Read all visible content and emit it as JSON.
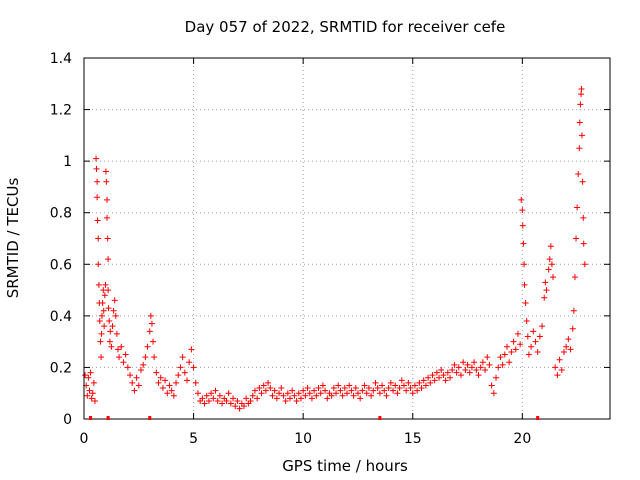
{
  "chart_data": {
    "type": "scatter",
    "title": "Day 057 of 2022, SRMTID for receiver cefe",
    "xlabel": "GPS time / hours",
    "ylabel": "SRMTID / TECUs",
    "xlim": [
      0,
      24
    ],
    "ylim": [
      0,
      1.4
    ],
    "xticks": [
      0,
      5,
      10,
      15,
      20
    ],
    "xtick_labels": [
      "0",
      "5",
      "10",
      "15",
      "20"
    ],
    "yticks": [
      0,
      0.2,
      0.4,
      0.6,
      0.8,
      1,
      1.2,
      1.4
    ],
    "ytick_labels": [
      "0",
      "0.2",
      "0.4",
      "0.6",
      "0.8",
      "1",
      "1.2",
      "1.4"
    ],
    "grid": true,
    "marker": "+",
    "series_color": "#ff0000",
    "series": [
      {
        "name": "SRMTID",
        "points": [
          [
            0.05,
            0.17
          ],
          [
            0.1,
            0.13
          ],
          [
            0.15,
            0.09
          ],
          [
            0.2,
            0.16
          ],
          [
            0.25,
            0.11
          ],
          [
            0.3,
            0.18
          ],
          [
            0.35,
            0.08
          ],
          [
            0.4,
            0.1
          ],
          [
            0.45,
            0.14
          ],
          [
            0.5,
            0.07
          ],
          [
            0.55,
            1.01
          ],
          [
            0.57,
            0.97
          ],
          [
            0.6,
            0.92
          ],
          [
            0.6,
            0.86
          ],
          [
            0.62,
            0.77
          ],
          [
            0.65,
            0.7
          ],
          [
            0.65,
            0.6
          ],
          [
            0.68,
            0.52
          ],
          [
            0.7,
            0.45
          ],
          [
            0.72,
            0.38
          ],
          [
            0.75,
            0.3
          ],
          [
            0.78,
            0.24
          ],
          [
            0.8,
            0.33
          ],
          [
            0.82,
            0.4
          ],
          [
            0.85,
            0.45
          ],
          [
            0.88,
            0.5
          ],
          [
            0.9,
            0.42
          ],
          [
            0.92,
            0.36
          ],
          [
            0.95,
            0.48
          ],
          [
            0.98,
            0.52
          ],
          [
            1.0,
            0.96
          ],
          [
            1.02,
            0.92
          ],
          [
            1.05,
            0.85
          ],
          [
            1.05,
            0.78
          ],
          [
            1.08,
            0.7
          ],
          [
            1.1,
            0.62
          ],
          [
            1.1,
            0.5
          ],
          [
            1.12,
            0.43
          ],
          [
            1.15,
            0.38
          ],
          [
            1.18,
            0.3
          ],
          [
            1.2,
            0.34
          ],
          [
            1.25,
            0.28
          ],
          [
            1.3,
            0.36
          ],
          [
            1.35,
            0.42
          ],
          [
            1.4,
            0.46
          ],
          [
            1.45,
            0.4
          ],
          [
            1.5,
            0.33
          ],
          [
            1.55,
            0.27
          ],
          [
            1.6,
            0.24
          ],
          [
            1.7,
            0.28
          ],
          [
            1.8,
            0.22
          ],
          [
            1.9,
            0.25
          ],
          [
            2.0,
            0.2
          ],
          [
            2.1,
            0.17
          ],
          [
            2.2,
            0.14
          ],
          [
            2.3,
            0.11
          ],
          [
            2.4,
            0.16
          ],
          [
            2.5,
            0.13
          ],
          [
            2.6,
            0.19
          ],
          [
            2.7,
            0.21
          ],
          [
            2.8,
            0.24
          ],
          [
            2.9,
            0.28
          ],
          [
            3.0,
            0.34
          ],
          [
            3.05,
            0.4
          ],
          [
            3.1,
            0.37
          ],
          [
            3.15,
            0.3
          ],
          [
            3.2,
            0.24
          ],
          [
            3.3,
            0.18
          ],
          [
            3.4,
            0.14
          ],
          [
            3.5,
            0.16
          ],
          [
            3.6,
            0.12
          ],
          [
            3.7,
            0.15
          ],
          [
            3.8,
            0.1
          ],
          [
            3.9,
            0.13
          ],
          [
            4.0,
            0.11
          ],
          [
            4.1,
            0.09
          ],
          [
            4.2,
            0.14
          ],
          [
            4.3,
            0.17
          ],
          [
            4.4,
            0.2
          ],
          [
            4.5,
            0.24
          ],
          [
            4.6,
            0.18
          ],
          [
            4.7,
            0.15
          ],
          [
            4.8,
            0.22
          ],
          [
            4.9,
            0.27
          ],
          [
            5.0,
            0.2
          ],
          [
            5.1,
            0.14
          ],
          [
            5.2,
            0.1
          ],
          [
            5.3,
            0.07
          ],
          [
            5.4,
            0.08
          ],
          [
            5.5,
            0.06
          ],
          [
            5.6,
            0.09
          ],
          [
            5.7,
            0.07
          ],
          [
            5.8,
            0.1
          ],
          [
            5.9,
            0.08
          ],
          [
            6.0,
            0.11
          ],
          [
            6.1,
            0.07
          ],
          [
            6.2,
            0.09
          ],
          [
            6.3,
            0.06
          ],
          [
            6.4,
            0.08
          ],
          [
            6.5,
            0.07
          ],
          [
            6.6,
            0.1
          ],
          [
            6.7,
            0.06
          ],
          [
            6.8,
            0.08
          ],
          [
            6.9,
            0.05
          ],
          [
            7.0,
            0.07
          ],
          [
            7.1,
            0.04
          ],
          [
            7.2,
            0.06
          ],
          [
            7.3,
            0.05
          ],
          [
            7.4,
            0.08
          ],
          [
            7.5,
            0.06
          ],
          [
            7.6,
            0.07
          ],
          [
            7.7,
            0.09
          ],
          [
            7.8,
            0.11
          ],
          [
            7.9,
            0.08
          ],
          [
            8.0,
            0.12
          ],
          [
            8.1,
            0.1
          ],
          [
            8.2,
            0.13
          ],
          [
            8.3,
            0.11
          ],
          [
            8.4,
            0.14
          ],
          [
            8.5,
            0.12
          ],
          [
            8.6,
            0.09
          ],
          [
            8.7,
            0.11
          ],
          [
            8.8,
            0.08
          ],
          [
            8.9,
            0.1
          ],
          [
            9.0,
            0.12
          ],
          [
            9.1,
            0.09
          ],
          [
            9.2,
            0.07
          ],
          [
            9.3,
            0.1
          ],
          [
            9.4,
            0.08
          ],
          [
            9.5,
            0.11
          ],
          [
            9.6,
            0.09
          ],
          [
            9.7,
            0.07
          ],
          [
            9.8,
            0.1
          ],
          [
            9.9,
            0.08
          ],
          [
            10.0,
            0.11
          ],
          [
            10.1,
            0.09
          ],
          [
            10.2,
            0.12
          ],
          [
            10.3,
            0.1
          ],
          [
            10.4,
            0.08
          ],
          [
            10.5,
            0.11
          ],
          [
            10.6,
            0.09
          ],
          [
            10.7,
            0.12
          ],
          [
            10.8,
            0.1
          ],
          [
            10.9,
            0.13
          ],
          [
            11.0,
            0.11
          ],
          [
            11.1,
            0.08
          ],
          [
            11.2,
            0.1
          ],
          [
            11.3,
            0.09
          ],
          [
            11.4,
            0.12
          ],
          [
            11.5,
            0.1
          ],
          [
            11.6,
            0.13
          ],
          [
            11.7,
            0.11
          ],
          [
            11.8,
            0.09
          ],
          [
            11.9,
            0.12
          ],
          [
            12.0,
            0.1
          ],
          [
            12.1,
            0.13
          ],
          [
            12.2,
            0.11
          ],
          [
            12.3,
            0.09
          ],
          [
            12.4,
            0.12
          ],
          [
            12.5,
            0.1
          ],
          [
            12.6,
            0.08
          ],
          [
            12.7,
            0.11
          ],
          [
            12.8,
            0.13
          ],
          [
            12.9,
            0.1
          ],
          [
            13.0,
            0.12
          ],
          [
            13.1,
            0.09
          ],
          [
            13.2,
            0.11
          ],
          [
            13.3,
            0.14
          ],
          [
            13.4,
            0.12
          ],
          [
            13.5,
            0.1
          ],
          [
            13.6,
            0.13
          ],
          [
            13.7,
            0.11
          ],
          [
            13.8,
            0.09
          ],
          [
            13.9,
            0.12
          ],
          [
            14.0,
            0.14
          ],
          [
            14.1,
            0.11
          ],
          [
            14.2,
            0.13
          ],
          [
            14.3,
            0.1
          ],
          [
            14.4,
            0.12
          ],
          [
            14.5,
            0.15
          ],
          [
            14.6,
            0.13
          ],
          [
            14.7,
            0.11
          ],
          [
            14.8,
            0.14
          ],
          [
            14.9,
            0.12
          ],
          [
            15.0,
            0.1
          ],
          [
            15.1,
            0.13
          ],
          [
            15.2,
            0.11
          ],
          [
            15.3,
            0.14
          ],
          [
            15.4,
            0.12
          ],
          [
            15.5,
            0.15
          ],
          [
            15.6,
            0.13
          ],
          [
            15.7,
            0.16
          ],
          [
            15.8,
            0.14
          ],
          [
            15.9,
            0.17
          ],
          [
            16.0,
            0.15
          ],
          [
            16.1,
            0.18
          ],
          [
            16.2,
            0.16
          ],
          [
            16.3,
            0.19
          ],
          [
            16.4,
            0.17
          ],
          [
            16.5,
            0.15
          ],
          [
            16.6,
            0.18
          ],
          [
            16.7,
            0.16
          ],
          [
            16.8,
            0.19
          ],
          [
            16.9,
            0.21
          ],
          [
            17.0,
            0.18
          ],
          [
            17.1,
            0.2
          ],
          [
            17.2,
            0.17
          ],
          [
            17.3,
            0.22
          ],
          [
            17.4,
            0.19
          ],
          [
            17.5,
            0.21
          ],
          [
            17.6,
            0.18
          ],
          [
            17.7,
            0.2
          ],
          [
            17.8,
            0.22
          ],
          [
            17.9,
            0.19
          ],
          [
            18.0,
            0.17
          ],
          [
            18.1,
            0.2
          ],
          [
            18.2,
            0.22
          ],
          [
            18.3,
            0.19
          ],
          [
            18.4,
            0.24
          ],
          [
            18.5,
            0.21
          ],
          [
            18.6,
            0.13
          ],
          [
            18.7,
            0.1
          ],
          [
            18.8,
            0.16
          ],
          [
            18.9,
            0.2
          ],
          [
            19.0,
            0.24
          ],
          [
            19.1,
            0.21
          ],
          [
            19.2,
            0.25
          ],
          [
            19.3,
            0.28
          ],
          [
            19.4,
            0.22
          ],
          [
            19.5,
            0.26
          ],
          [
            19.6,
            0.3
          ],
          [
            19.7,
            0.27
          ],
          [
            19.8,
            0.33
          ],
          [
            19.9,
            0.29
          ],
          [
            19.95,
            0.85
          ],
          [
            20.0,
            0.81
          ],
          [
            20.02,
            0.75
          ],
          [
            20.05,
            0.68
          ],
          [
            20.08,
            0.6
          ],
          [
            20.1,
            0.52
          ],
          [
            20.15,
            0.45
          ],
          [
            20.2,
            0.38
          ],
          [
            20.25,
            0.32
          ],
          [
            20.3,
            0.25
          ],
          [
            20.4,
            0.28
          ],
          [
            20.5,
            0.34
          ],
          [
            20.6,
            0.3
          ],
          [
            20.7,
            0.26
          ],
          [
            20.8,
            0.32
          ],
          [
            20.9,
            0.36
          ],
          [
            21.0,
            0.47
          ],
          [
            21.05,
            0.53
          ],
          [
            21.1,
            0.5
          ],
          [
            21.2,
            0.58
          ],
          [
            21.25,
            0.62
          ],
          [
            21.3,
            0.67
          ],
          [
            21.35,
            0.6
          ],
          [
            21.4,
            0.55
          ],
          [
            21.5,
            0.2
          ],
          [
            21.6,
            0.17
          ],
          [
            21.7,
            0.23
          ],
          [
            21.8,
            0.19
          ],
          [
            21.9,
            0.26
          ],
          [
            22.0,
            0.28
          ],
          [
            22.1,
            0.31
          ],
          [
            22.2,
            0.27
          ],
          [
            22.3,
            0.35
          ],
          [
            22.35,
            0.42
          ],
          [
            22.4,
            0.55
          ],
          [
            22.45,
            0.7
          ],
          [
            22.5,
            0.82
          ],
          [
            22.55,
            0.95
          ],
          [
            22.6,
            1.05
          ],
          [
            22.62,
            1.15
          ],
          [
            22.65,
            1.22
          ],
          [
            22.68,
            1.26
          ],
          [
            22.7,
            1.28
          ],
          [
            22.72,
            1.1
          ],
          [
            22.75,
            0.92
          ],
          [
            22.78,
            0.78
          ],
          [
            22.8,
            0.68
          ],
          [
            22.85,
            0.6
          ]
        ]
      }
    ],
    "rug_x": [
      0.3,
      1.1,
      3.0,
      13.5,
      20.7
    ]
  }
}
